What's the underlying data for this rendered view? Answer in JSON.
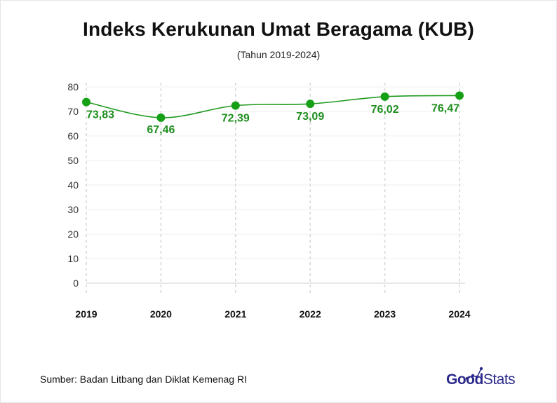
{
  "chart_data": {
    "type": "line",
    "title": "Indeks Kerukunan Umat Beragama (KUB)",
    "subtitle": "(Tahun 2019-2024)",
    "categories": [
      "2019",
      "2020",
      "2021",
      "2022",
      "2023",
      "2024"
    ],
    "series": [
      {
        "values": [
          73.83,
          67.46,
          72.39,
          73.09,
          76.02,
          76.47
        ],
        "labels": [
          "73,83",
          "67,46",
          "72,39",
          "73,09",
          "76,02",
          "76,47"
        ]
      }
    ],
    "ylim": [
      0,
      80
    ],
    "yticks": [
      0,
      10,
      20,
      30,
      40,
      50,
      60,
      70,
      80
    ],
    "xlabel": "",
    "ylabel": "",
    "grid": "vertical dashed at categories, light horizontal",
    "legend": "none",
    "colors": {
      "line": "#1f9a1f",
      "point": "#16a016",
      "label": "#1f8f1f",
      "grid": "#d9d9d9"
    }
  },
  "footer": {
    "source": "Sumber: Badan Litbang dan Diklat Kemenag RI",
    "logo_good": "Good",
    "logo_stats": "Stats"
  }
}
